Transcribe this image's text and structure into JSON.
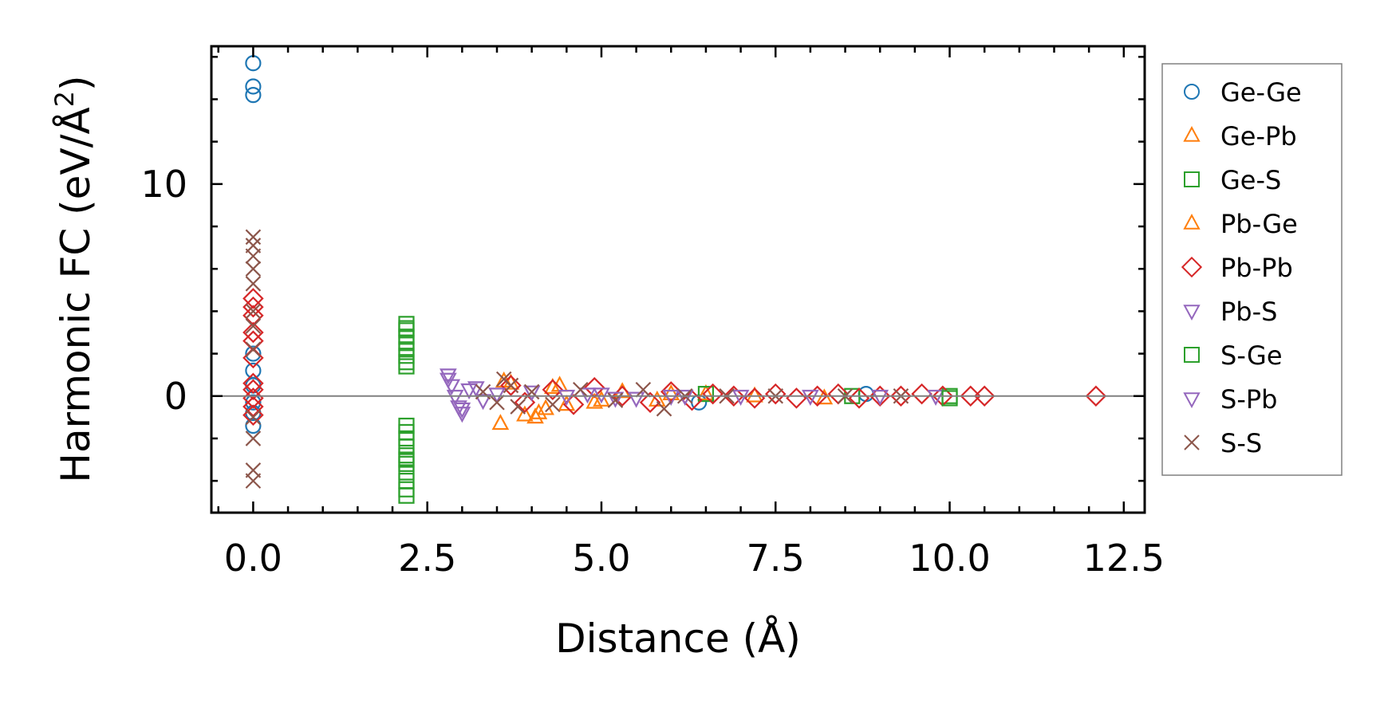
{
  "chart_data": {
    "type": "scatter",
    "xlabel": "Distance (Å)",
    "ylabel_main": "Harmonic FC (eV/Å",
    "ylabel_sup": "2",
    "ylabel_close": ")",
    "xlim": [
      -0.6,
      12.8
    ],
    "ylim": [
      -5.5,
      16.5
    ],
    "x_ticks": [
      {
        "value": 0.0,
        "label": "0.0"
      },
      {
        "value": 2.5,
        "label": "2.5"
      },
      {
        "value": 5.0,
        "label": "5.0"
      },
      {
        "value": 7.5,
        "label": "7.5"
      },
      {
        "value": 10.0,
        "label": "10.0"
      },
      {
        "value": 12.5,
        "label": "12.5"
      }
    ],
    "y_ticks": [
      {
        "value": 0,
        "label": "0"
      },
      {
        "value": 10,
        "label": "10"
      }
    ],
    "x_minor_step": 0.5,
    "y_minor_step": 2,
    "zero_line": true,
    "grid": false,
    "legend": "right-outside",
    "series": [
      {
        "name": "Ge-Ge",
        "marker": "circle",
        "color": "#1f77b4",
        "points": [
          [
            0,
            15.7
          ],
          [
            0,
            14.6
          ],
          [
            0,
            14.2
          ],
          [
            0,
            2.0
          ],
          [
            0,
            1.2
          ],
          [
            0,
            0.5
          ],
          [
            0,
            -0.3
          ],
          [
            0,
            -0.8
          ],
          [
            0,
            -1.4
          ],
          [
            6.4,
            -0.3
          ],
          [
            8.8,
            0.1
          ]
        ]
      },
      {
        "name": "Ge-Pb",
        "marker": "triangle-up",
        "color": "#ff7f0e",
        "points": [
          [
            3.55,
            -1.3
          ],
          [
            3.7,
            0.6
          ],
          [
            3.9,
            -0.9
          ],
          [
            4.05,
            -1.0
          ],
          [
            4.2,
            -0.6
          ],
          [
            4.3,
            0.4
          ],
          [
            4.5,
            -0.4
          ],
          [
            4.9,
            -0.3
          ],
          [
            5.3,
            0.2
          ],
          [
            5.8,
            -0.2
          ],
          [
            6.5,
            0.1
          ],
          [
            7.2,
            0.0
          ],
          [
            8.2,
            -0.1
          ]
        ]
      },
      {
        "name": "Ge-S",
        "marker": "square",
        "color": "#2ca02c",
        "points": [
          [
            2.2,
            3.4
          ],
          [
            2.2,
            3.1
          ],
          [
            2.2,
            2.8
          ],
          [
            2.2,
            2.5
          ],
          [
            2.2,
            2.2
          ],
          [
            2.2,
            1.9
          ],
          [
            2.2,
            1.6
          ],
          [
            2.2,
            1.4
          ],
          [
            2.2,
            -1.4
          ],
          [
            2.2,
            -1.7
          ],
          [
            2.2,
            -2.0
          ],
          [
            2.2,
            -2.4
          ],
          [
            2.2,
            -2.8
          ],
          [
            2.2,
            -3.2
          ],
          [
            2.2,
            -3.6
          ],
          [
            2.2,
            -4.0
          ],
          [
            2.2,
            -4.4
          ],
          [
            2.2,
            -4.7
          ],
          [
            6.5,
            0.1
          ],
          [
            8.6,
            0.0
          ],
          [
            10.0,
            0.0
          ]
        ]
      },
      {
        "name": "Pb-Ge",
        "marker": "triangle-up",
        "color": "#ff7f0e",
        "points": [
          [
            3.6,
            0.7
          ],
          [
            4.1,
            -0.8
          ],
          [
            4.4,
            0.5
          ],
          [
            5.0,
            -0.2
          ],
          [
            6.0,
            0.1
          ]
        ]
      },
      {
        "name": "Pb-Pb",
        "marker": "diamond",
        "color": "#d62728",
        "points": [
          [
            0,
            4.6
          ],
          [
            0,
            4.2
          ],
          [
            0,
            3.8
          ],
          [
            0,
            3.0
          ],
          [
            0,
            2.6
          ],
          [
            0,
            1.8
          ],
          [
            0,
            0.6
          ],
          [
            0,
            0.3
          ],
          [
            0,
            -0.1
          ],
          [
            0,
            -0.5
          ],
          [
            0,
            -0.9
          ],
          [
            3.7,
            0.5
          ],
          [
            3.9,
            -0.3
          ],
          [
            4.3,
            0.3
          ],
          [
            4.6,
            -0.4
          ],
          [
            4.9,
            0.4
          ],
          [
            5.3,
            0.0
          ],
          [
            5.7,
            -0.3
          ],
          [
            6.0,
            0.2
          ],
          [
            6.3,
            -0.2
          ],
          [
            6.6,
            0.1
          ],
          [
            6.9,
            0.0
          ],
          [
            7.2,
            -0.1
          ],
          [
            7.5,
            0.1
          ],
          [
            7.8,
            -0.1
          ],
          [
            8.1,
            0.0
          ],
          [
            8.4,
            0.1
          ],
          [
            8.7,
            -0.1
          ],
          [
            9.0,
            0.0
          ],
          [
            9.3,
            0.0
          ],
          [
            9.6,
            0.1
          ],
          [
            9.9,
            0.0
          ],
          [
            10.3,
            0.0
          ],
          [
            10.5,
            0.0
          ],
          [
            12.1,
            0.0
          ]
        ]
      },
      {
        "name": "Pb-S",
        "marker": "triangle-down",
        "color": "#9467bd",
        "points": [
          [
            2.8,
            1.0
          ],
          [
            2.85,
            0.5
          ],
          [
            2.9,
            0.0
          ],
          [
            2.95,
            -0.5
          ],
          [
            3.0,
            -0.8
          ],
          [
            3.1,
            0.3
          ],
          [
            3.3,
            -0.2
          ],
          [
            3.5,
            0.1
          ],
          [
            4.0,
            0.2
          ],
          [
            4.5,
            0.0
          ],
          [
            5.0,
            0.1
          ],
          [
            5.5,
            -0.1
          ],
          [
            6.0,
            0.0
          ],
          [
            7.0,
            0.0
          ],
          [
            8.0,
            0.0
          ],
          [
            9.0,
            0.0
          ],
          [
            9.8,
            0.0
          ]
        ]
      },
      {
        "name": "S-Ge",
        "marker": "square",
        "color": "#2ca02c",
        "points": [
          [
            2.2,
            3.2
          ],
          [
            2.2,
            -3.0
          ],
          [
            10.0,
            -0.1
          ]
        ]
      },
      {
        "name": "S-Pb",
        "marker": "triangle-down",
        "color": "#9467bd",
        "points": [
          [
            2.8,
            0.8
          ],
          [
            3.0,
            -0.6
          ],
          [
            3.2,
            0.4
          ],
          [
            4.8,
            0.1
          ],
          [
            5.2,
            -0.1
          ],
          [
            6.2,
            0.0
          ]
        ]
      },
      {
        "name": "S-S",
        "marker": "x",
        "color": "#8c564b",
        "points": [
          [
            0,
            7.5
          ],
          [
            0,
            7.1
          ],
          [
            0,
            6.6
          ],
          [
            0,
            6.0
          ],
          [
            0,
            5.3
          ],
          [
            0,
            4.0
          ],
          [
            0,
            3.3
          ],
          [
            0,
            2.2
          ],
          [
            0,
            -1.0
          ],
          [
            0,
            -2.0
          ],
          [
            0,
            -3.5
          ],
          [
            0,
            -4.0
          ],
          [
            3.3,
            0.2
          ],
          [
            3.5,
            -0.3
          ],
          [
            3.6,
            0.8
          ],
          [
            3.7,
            0.5
          ],
          [
            3.8,
            -0.5
          ],
          [
            4.0,
            0.2
          ],
          [
            4.3,
            -0.4
          ],
          [
            4.7,
            0.3
          ],
          [
            5.2,
            -0.2
          ],
          [
            5.6,
            0.3
          ],
          [
            5.9,
            -0.6
          ],
          [
            6.2,
            0.0
          ],
          [
            6.8,
            0.0
          ],
          [
            7.5,
            0.0
          ],
          [
            8.5,
            0.0
          ],
          [
            9.3,
            0.0
          ]
        ]
      }
    ]
  },
  "colors": {
    "zero_line": "#808080",
    "frame": "#000000",
    "legend_border": "#808080"
  }
}
